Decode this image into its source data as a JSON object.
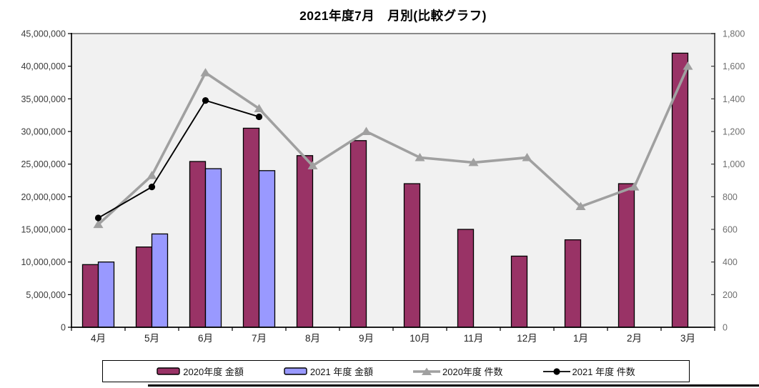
{
  "title": "2021年度7月　月別(比較グラフ)",
  "chart_data": {
    "type": "bar",
    "subtype": "combo bar + line, dual value axes",
    "categories": [
      "4月",
      "5月",
      "6月",
      "7月",
      "8月",
      "9月",
      "10月",
      "11月",
      "12月",
      "1月",
      "2月",
      "3月"
    ],
    "bar_series": [
      {
        "name": "2020年度 金額",
        "color": "#993366",
        "axis": "left",
        "values": [
          9600000,
          12300000,
          25400000,
          30500000,
          26300000,
          28600000,
          22000000,
          15000000,
          10900000,
          13400000,
          22000000,
          42000000
        ]
      },
      {
        "name": "2021 年度 金額",
        "color": "#9999FF",
        "axis": "left",
        "values": [
          10000000,
          14300000,
          24300000,
          24000000,
          null,
          null,
          null,
          null,
          null,
          null,
          null,
          null
        ]
      }
    ],
    "line_series": [
      {
        "name": "2020年度 件数",
        "color": "#A0A0A0",
        "marker": "triangle",
        "axis": "right",
        "values": [
          630,
          930,
          1560,
          1340,
          990,
          1200,
          1040,
          1010,
          1040,
          740,
          860,
          1600
        ]
      },
      {
        "name": "2021 年度 件数",
        "color": "#000000",
        "marker": "circle",
        "axis": "right",
        "values": [
          670,
          860,
          1390,
          1290,
          null,
          null,
          null,
          null,
          null,
          null,
          null,
          null
        ]
      }
    ],
    "left_axis": {
      "min": 0,
      "max": 45000000,
      "step": 5000000
    },
    "right_axis": {
      "min": 0,
      "max": 1800,
      "step": 200
    },
    "plot_background": "#F1F1F1",
    "grid": "off",
    "legend_position": "bottom"
  }
}
